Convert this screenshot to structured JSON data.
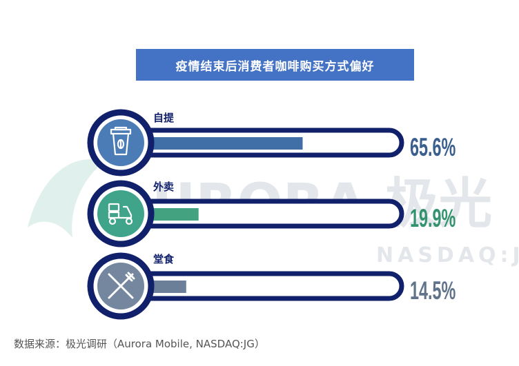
{
  "chart_data": {
    "type": "bar",
    "title": "疫情结束后消费者咖啡购买方式偏好",
    "categories": [
      "自提",
      "外卖",
      "堂食"
    ],
    "values": [
      65.6,
      19.9,
      14.5
    ],
    "value_labels": [
      "65.6%",
      "19.9%",
      "14.5%"
    ],
    "unit": "%",
    "icons": [
      "takeaway-coffee-cup-icon",
      "delivery-scooter-icon",
      "fork-knife-icon"
    ],
    "icon_colors": [
      "#4b7cb6",
      "#3fa48a",
      "#74879e"
    ],
    "fill_colors": [
      "#3f6fa6",
      "#43a381",
      "#6c7f98"
    ],
    "label_colors": [
      "#3a5f8f",
      "#33936f",
      "#5f738a"
    ],
    "frame_color": "#11206b",
    "xlim": [
      0,
      100
    ],
    "grid": false,
    "legend": "none"
  },
  "watermark": {
    "logo_text": "URORA 极光",
    "sub_text": "NASDAQ:JG"
  },
  "source": "数据来源：极光调研（Aurora Mobile, NASDAQ:JG）"
}
